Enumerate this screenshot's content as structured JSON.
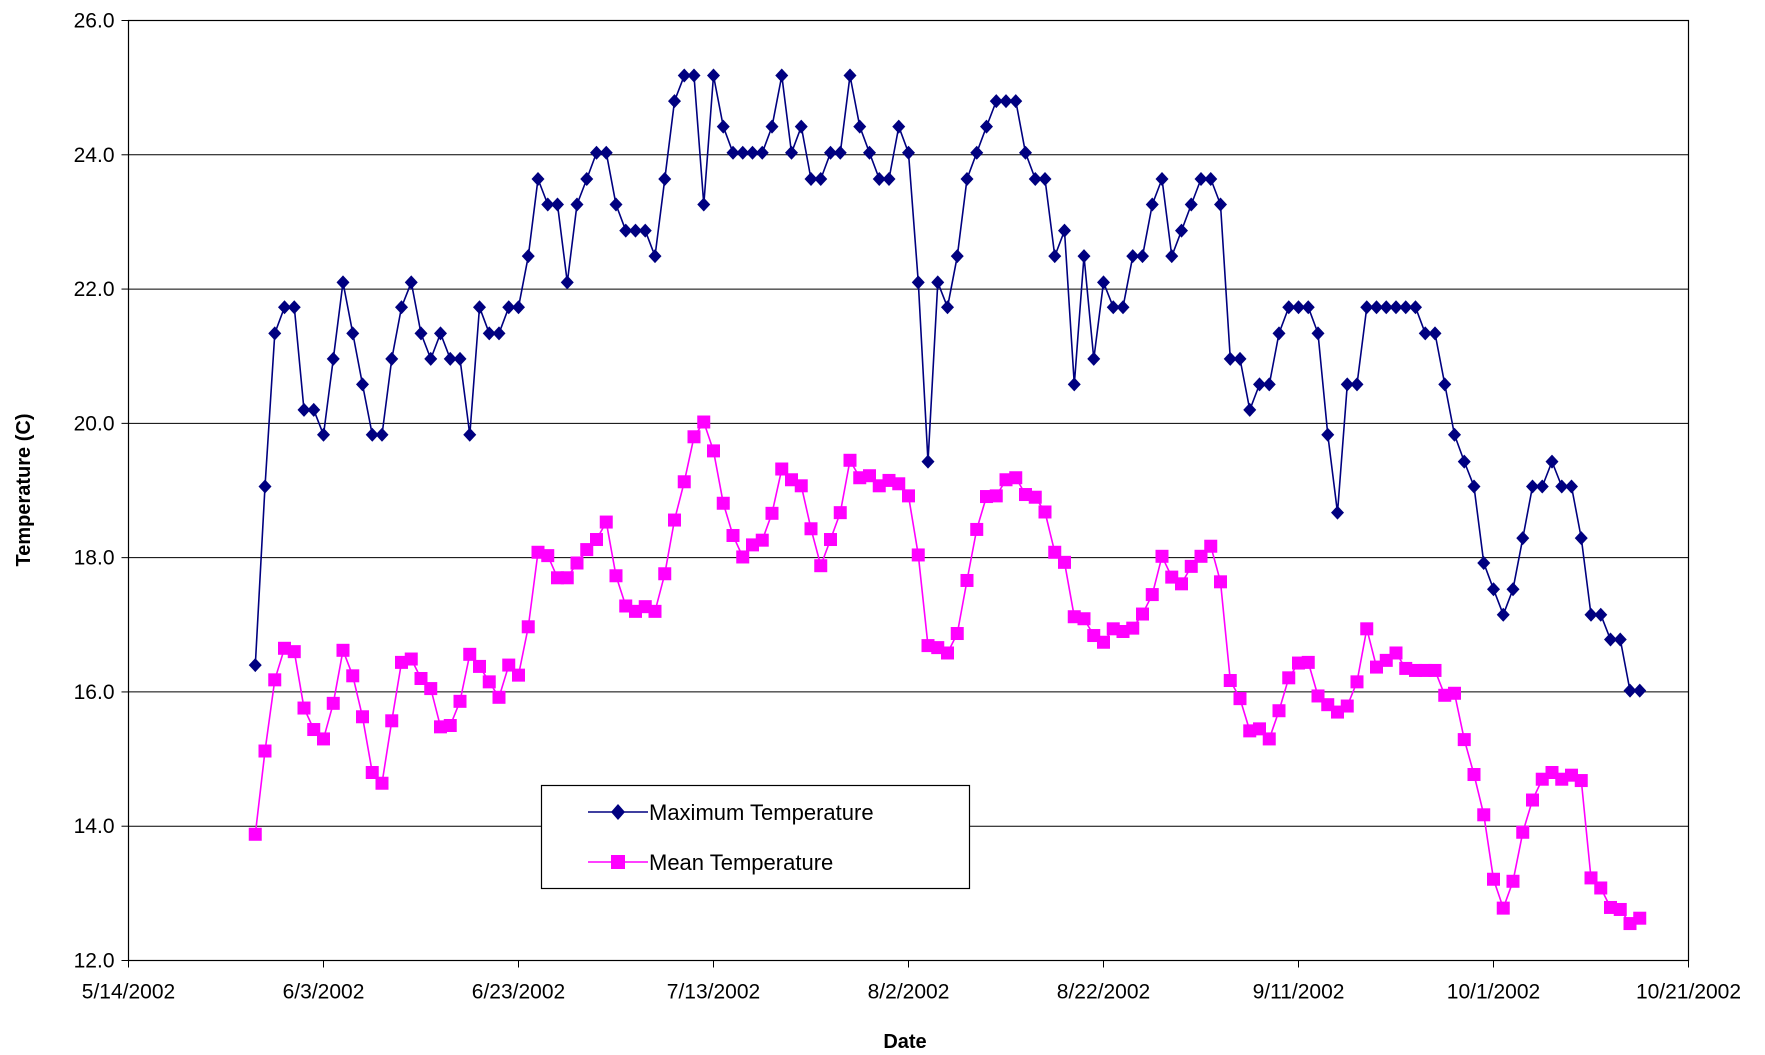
{
  "chart_data": {
    "type": "line",
    "title": "",
    "xlabel": "Date",
    "ylabel": "Temperature (C)",
    "x_axis": {
      "type": "date",
      "range": [
        "2002-05-14",
        "2002-10-21"
      ],
      "tick_labels": [
        "5/14/2002",
        "6/3/2002",
        "6/23/2002",
        "7/13/2002",
        "8/2/2002",
        "8/22/2002",
        "9/11/2002",
        "10/1/2002",
        "10/21/2002"
      ]
    },
    "y_axis": {
      "range": [
        12,
        26
      ],
      "ticks": [
        12,
        14,
        16,
        18,
        20,
        22,
        24,
        26
      ],
      "tick_labels": [
        "12.0",
        "14.0",
        "16.0",
        "18.0",
        "20.0",
        "22.0",
        "24.0",
        "26.0"
      ]
    },
    "grid": "horizontal",
    "legend_position": "inside-bottom-center",
    "x_start": "2002-05-27",
    "x_step_days": 1,
    "series": [
      {
        "name": "Maximum Temperature",
        "color": "#000080",
        "marker": "diamond",
        "values": [
          16.4,
          19.06,
          21.34,
          21.73,
          21.73,
          20.2,
          20.2,
          19.83,
          20.96,
          22.1,
          21.34,
          20.58,
          19.83,
          19.83,
          20.96,
          21.73,
          22.1,
          21.34,
          20.96,
          21.34,
          20.96,
          20.96,
          19.83,
          21.73,
          21.34,
          21.34,
          21.73,
          21.73,
          22.49,
          23.64,
          23.26,
          23.26,
          22.1,
          23.26,
          23.64,
          24.03,
          24.03,
          23.26,
          22.87,
          22.87,
          22.87,
          22.49,
          23.64,
          24.8,
          25.18,
          25.18,
          23.26,
          25.18,
          24.42,
          24.03,
          24.03,
          24.03,
          24.03,
          24.42,
          25.18,
          24.03,
          24.42,
          23.64,
          23.64,
          24.03,
          24.03,
          25.18,
          24.42,
          24.03,
          23.64,
          23.64,
          24.42,
          24.03,
          22.1,
          19.43,
          22.1,
          21.73,
          22.49,
          23.64,
          24.03,
          24.42,
          24.8,
          24.8,
          24.8,
          24.03,
          23.64,
          23.64,
          22.49,
          22.87,
          20.58,
          22.49,
          20.96,
          22.1,
          21.73,
          21.73,
          22.49,
          22.49,
          23.26,
          23.64,
          22.49,
          22.87,
          23.26,
          23.64,
          23.64,
          23.26,
          20.96,
          20.96,
          20.2,
          20.58,
          20.58,
          21.34,
          21.73,
          21.73,
          21.73,
          21.34,
          19.83,
          18.67,
          20.58,
          20.58,
          21.73,
          21.73,
          21.73,
          21.73,
          21.73,
          21.73,
          21.34,
          21.34,
          20.58,
          19.83,
          19.43,
          19.06,
          17.92,
          17.53,
          17.15,
          17.53,
          18.29,
          19.06,
          19.06,
          19.43,
          19.06,
          19.06,
          18.29,
          17.15,
          17.15,
          16.78,
          16.78,
          16.02,
          16.02
        ]
      },
      {
        "name": "Mean Temperature",
        "color": "#ff00ff",
        "marker": "square",
        "values": [
          13.88,
          15.12,
          16.18,
          16.65,
          16.6,
          15.76,
          15.44,
          15.3,
          15.83,
          16.62,
          16.24,
          15.63,
          14.8,
          14.64,
          15.57,
          16.44,
          16.49,
          16.2,
          16.05,
          15.48,
          15.5,
          15.86,
          16.56,
          16.38,
          16.15,
          15.92,
          16.4,
          16.25,
          16.97,
          18.08,
          18.03,
          17.7,
          17.7,
          17.92,
          18.12,
          18.27,
          18.53,
          17.73,
          17.28,
          17.2,
          17.27,
          17.2,
          17.76,
          18.56,
          19.13,
          19.8,
          20.02,
          19.59,
          18.81,
          18.33,
          18.01,
          18.19,
          18.26,
          18.66,
          19.32,
          19.16,
          19.07,
          18.43,
          17.88,
          18.27,
          18.67,
          19.45,
          19.19,
          19.22,
          19.07,
          19.15,
          19.1,
          18.92,
          18.04,
          16.69,
          16.66,
          16.58,
          16.87,
          17.66,
          18.42,
          18.91,
          18.92,
          19.16,
          19.19,
          18.94,
          18.9,
          18.68,
          18.08,
          17.93,
          17.12,
          17.09,
          16.84,
          16.74,
          16.94,
          16.9,
          16.95,
          17.16,
          17.45,
          18.02,
          17.71,
          17.61,
          17.87,
          18.02,
          18.17,
          17.64,
          16.17,
          15.9,
          15.42,
          15.45,
          15.3,
          15.72,
          16.21,
          16.43,
          16.44,
          15.94,
          15.81,
          15.7,
          15.79,
          16.15,
          16.94,
          16.37,
          16.47,
          16.58,
          16.35,
          16.32,
          16.32,
          16.32,
          15.95,
          15.98,
          15.29,
          14.77,
          14.17,
          13.21,
          12.78,
          13.18,
          13.91,
          14.39,
          14.7,
          14.8,
          14.7,
          14.76,
          14.68,
          13.23,
          13.08,
          12.79,
          12.76,
          12.55,
          12.63
        ]
      }
    ]
  }
}
